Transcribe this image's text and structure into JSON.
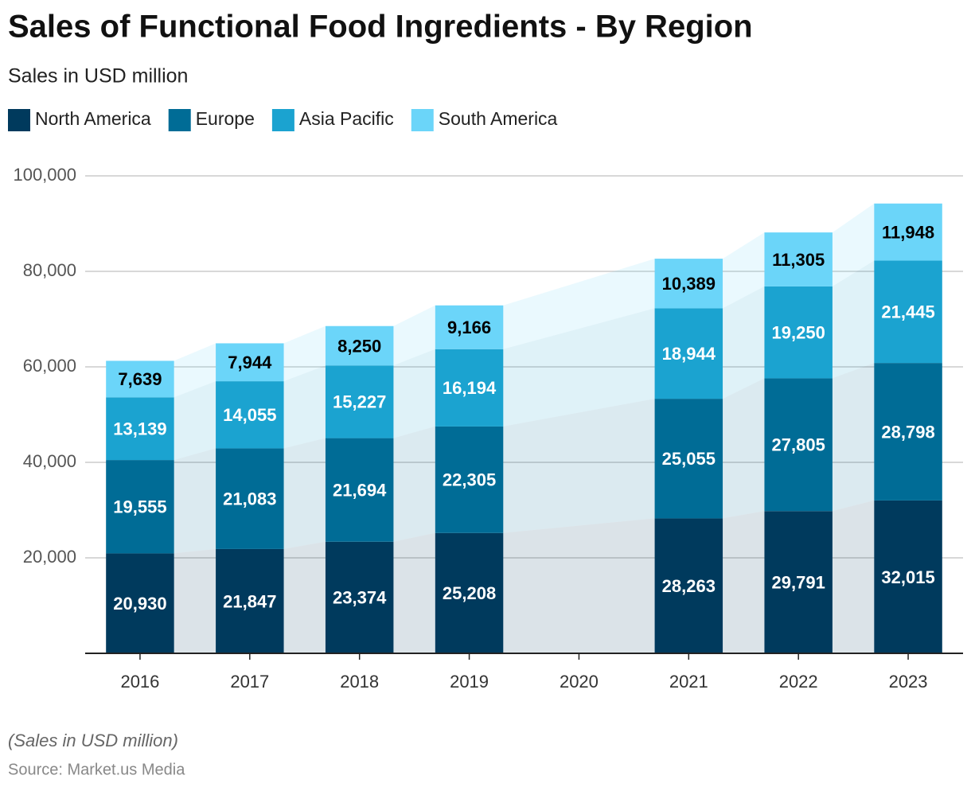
{
  "chart_data": {
    "type": "stacked_bar",
    "title": "Sales of Functional Food Ingredients - By Region",
    "subtitle": "Sales in USD million",
    "footnote": "(Sales in USD million)",
    "source": "Source: Market.us Media",
    "categories": [
      "2016",
      "2017",
      "2018",
      "2019",
      "2020",
      "2021",
      "2022",
      "2023"
    ],
    "series": [
      {
        "name": "North America",
        "color": "#003a5d",
        "label_color": "#ffffff",
        "values": [
          20930,
          21847,
          23374,
          25208,
          null,
          28263,
          29791,
          32015
        ],
        "value_labels": [
          "20,930",
          "21,847",
          "23,374",
          "25,208",
          null,
          "28,263",
          "29,791",
          "32,015"
        ]
      },
      {
        "name": "Europe",
        "color": "#006c96",
        "label_color": "#ffffff",
        "values": [
          19555,
          21083,
          21694,
          22305,
          null,
          25055,
          27805,
          28798
        ],
        "value_labels": [
          "19,555",
          "21,083",
          "21,694",
          "22,305",
          null,
          "25,055",
          "27,805",
          "28,798"
        ]
      },
      {
        "name": "Asia Pacific",
        "color": "#1ba3d0",
        "label_color": "#ffffff",
        "values": [
          13139,
          14055,
          15227,
          16194,
          null,
          18944,
          19250,
          21445
        ],
        "value_labels": [
          "13,139",
          "14,055",
          "15,227",
          "16,194",
          null,
          "18,944",
          "19,250",
          "21,445"
        ]
      },
      {
        "name": "South America",
        "color": "#6bd5f9",
        "label_color": "#000000",
        "values": [
          7639,
          7944,
          8250,
          9166,
          null,
          10389,
          11305,
          11948
        ],
        "value_labels": [
          "7,639",
          "7,944",
          "8,250",
          "9,166",
          null,
          "10,389",
          "11,305",
          "11,948"
        ]
      }
    ],
    "ylim": [
      0,
      100000
    ],
    "yticks": [
      {
        "value": 20000,
        "label": "20,000"
      },
      {
        "value": 40000,
        "label": "40,000"
      },
      {
        "value": 60000,
        "label": "60,000"
      },
      {
        "value": 80000,
        "label": "80,000"
      },
      {
        "value": 100000,
        "label": "100,000"
      }
    ],
    "grid": true
  }
}
